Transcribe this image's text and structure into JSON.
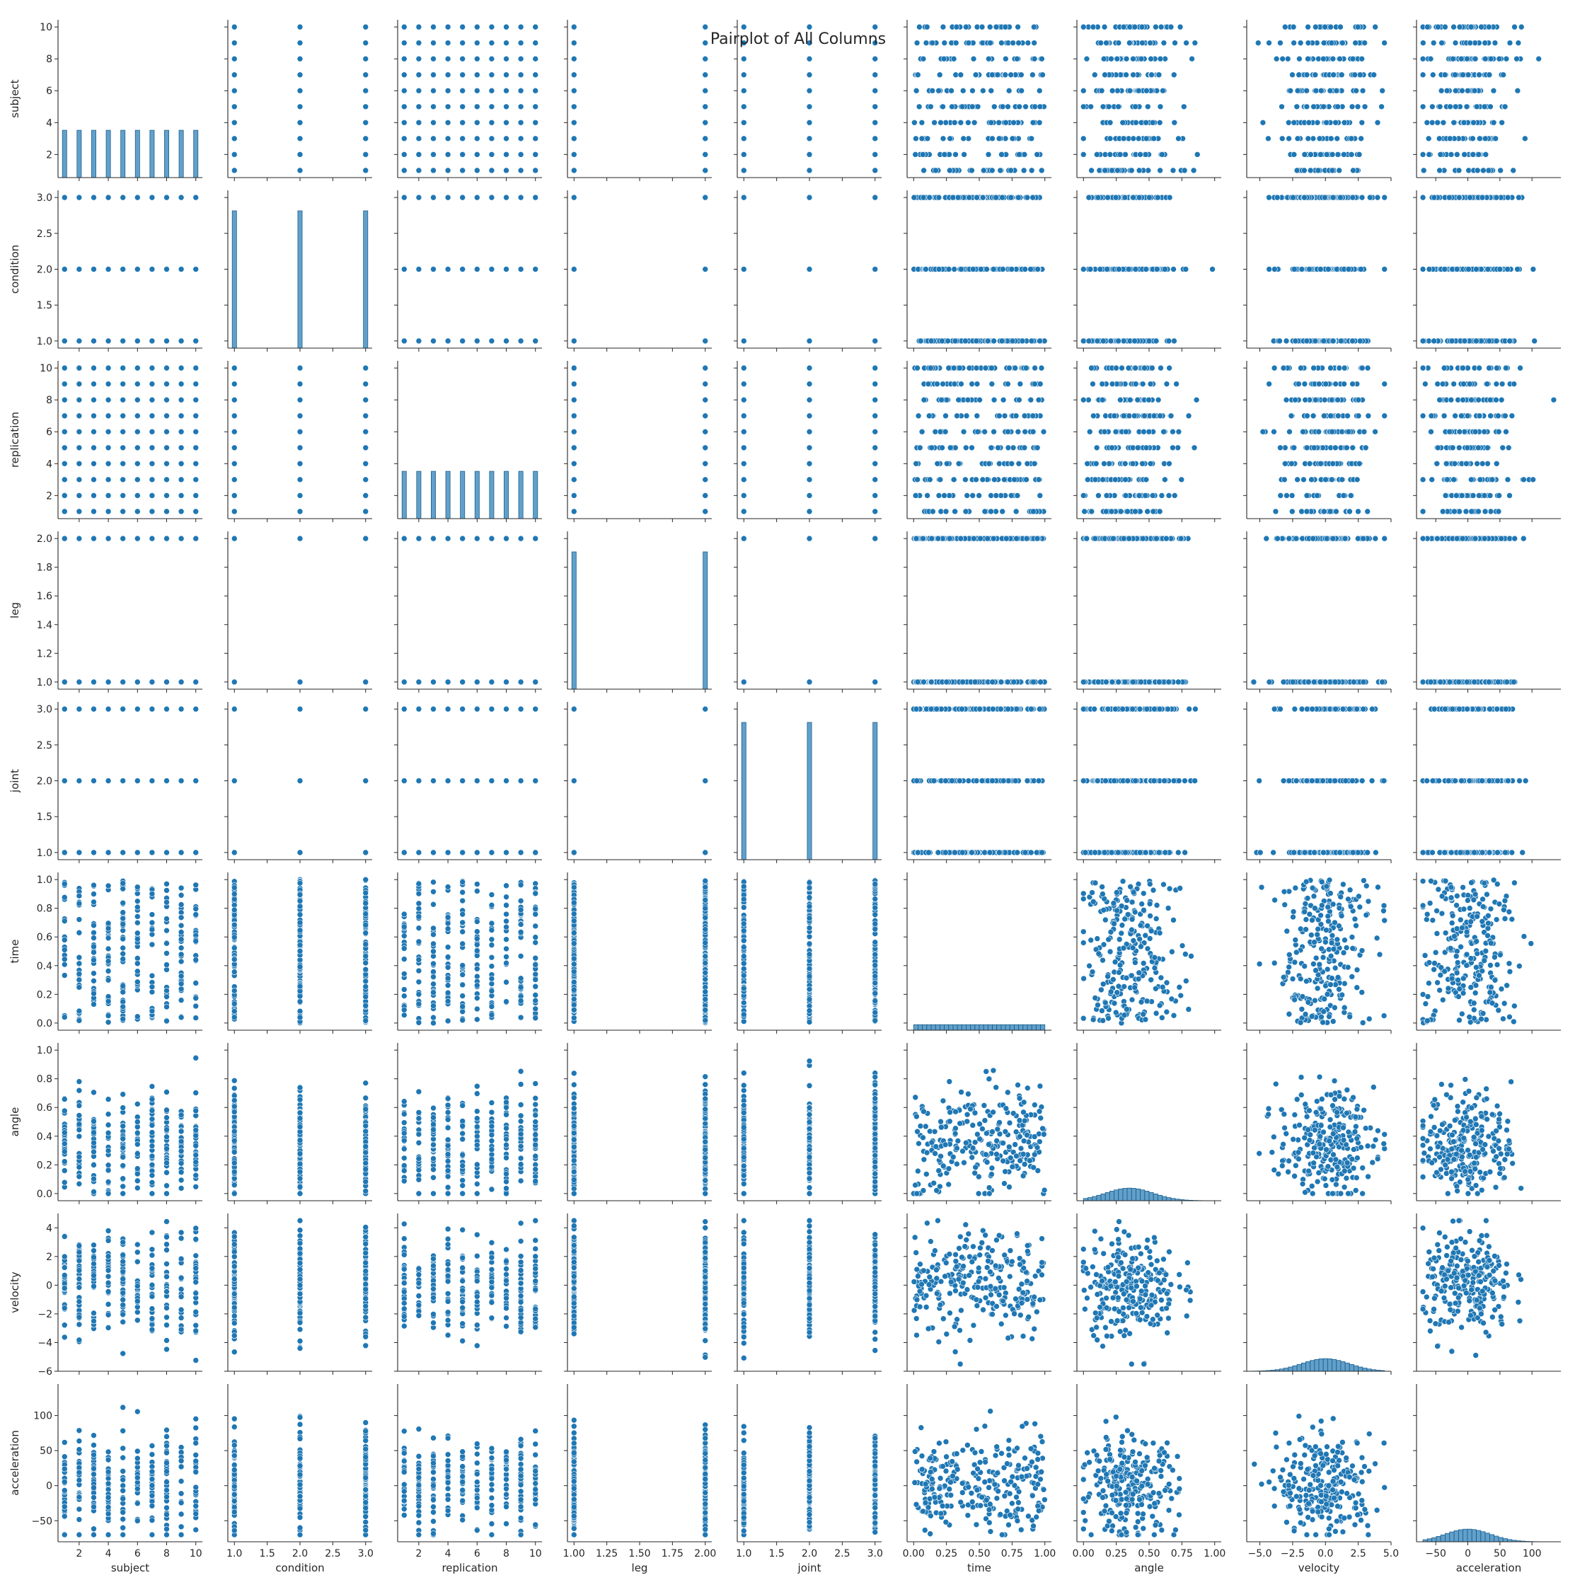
{
  "chart_data": {
    "type": "scatter",
    "kind": "pairplot",
    "title": "Pairplot of All Columns",
    "color": "#1f77b4",
    "variables": [
      {
        "name": "subject",
        "range": [
          0.55,
          10.45
        ],
        "ticks": [
          2,
          4,
          6,
          8,
          10
        ],
        "tick_labels": [
          "2",
          "4",
          "6",
          "8",
          "10"
        ],
        "dist": "levels",
        "levels": [
          1,
          2,
          3,
          4,
          5,
          6,
          7,
          8,
          9,
          10
        ]
      },
      {
        "name": "condition",
        "range": [
          0.9,
          3.1
        ],
        "ticks": [
          1.0,
          1.5,
          2.0,
          2.5,
          3.0
        ],
        "tick_labels": [
          "1.0",
          "1.5",
          "2.0",
          "2.5",
          "3.0"
        ],
        "dist": "levels",
        "levels": [
          1,
          2,
          3
        ]
      },
      {
        "name": "replication",
        "range": [
          0.55,
          10.45
        ],
        "ticks": [
          2,
          4,
          6,
          8,
          10
        ],
        "tick_labels": [
          "2",
          "4",
          "6",
          "8",
          "10"
        ],
        "dist": "levels",
        "levels": [
          1,
          2,
          3,
          4,
          5,
          6,
          7,
          8,
          9,
          10
        ]
      },
      {
        "name": "leg",
        "range": [
          0.95,
          2.05
        ],
        "ticks": [
          1.0,
          1.25,
          1.5,
          1.75,
          2.0
        ],
        "tick_labels": [
          "1.00",
          "1.25",
          "1.50",
          "1.75",
          "2.00"
        ],
        "y_ticks": [
          1.0,
          1.2,
          1.4,
          1.6,
          1.8,
          2.0
        ],
        "y_tick_labels": [
          "1.0",
          "1.2",
          "1.4",
          "1.6",
          "1.8",
          "2.0"
        ],
        "dist": "levels",
        "levels": [
          1,
          2
        ]
      },
      {
        "name": "joint",
        "range": [
          0.9,
          3.1
        ],
        "ticks": [
          1.0,
          1.5,
          2.0,
          2.5,
          3.0
        ],
        "tick_labels": [
          "1.0",
          "1.5",
          "2.0",
          "2.5",
          "3.0"
        ],
        "dist": "levels",
        "levels": [
          1,
          2,
          3
        ]
      },
      {
        "name": "time",
        "range": [
          -0.05,
          1.05
        ],
        "ticks": [
          0.0,
          0.25,
          0.5,
          0.75,
          1.0
        ],
        "tick_labels": [
          "0.00",
          "0.25",
          "0.50",
          "0.75",
          "1.00"
        ],
        "y_ticks": [
          0.0,
          0.2,
          0.4,
          0.6,
          0.8,
          1.0
        ],
        "y_tick_labels": [
          "0.0",
          "0.2",
          "0.4",
          "0.6",
          "0.8",
          "1.0"
        ],
        "dist": "uniform",
        "min": 0.0,
        "max": 1.0
      },
      {
        "name": "angle",
        "range": [
          -0.05,
          1.05
        ],
        "ticks": [
          0.0,
          0.25,
          0.5,
          0.75,
          1.0
        ],
        "tick_labels": [
          "0.00",
          "0.25",
          "0.50",
          "0.75",
          "1.00"
        ],
        "y_ticks": [
          0.0,
          0.2,
          0.4,
          0.6,
          0.8,
          1.0
        ],
        "y_tick_labels": [
          "0.0",
          "0.2",
          "0.4",
          "0.6",
          "0.8",
          "1.0"
        ],
        "dist": "normal",
        "mean": 0.35,
        "sd": 0.18,
        "min": 0.0,
        "max": 1.0
      },
      {
        "name": "velocity",
        "range": [
          -6.0,
          5.0
        ],
        "ticks": [
          -5.0,
          -2.5,
          0.0,
          2.5,
          5.0
        ],
        "tick_labels": [
          "−5.0",
          "−2.5",
          "0.0",
          "2.5",
          "5.0"
        ],
        "y_ticks": [
          -6,
          -4,
          -2,
          0,
          2,
          4
        ],
        "y_tick_labels": [
          "−6",
          "−4",
          "−2",
          "0",
          "2",
          "4"
        ],
        "dist": "normal",
        "mean": 0.0,
        "sd": 1.8,
        "min": -5.5,
        "max": 4.5
      },
      {
        "name": "acceleration",
        "range": [
          -80,
          145
        ],
        "ticks": [
          -50,
          0,
          50,
          100
        ],
        "tick_labels": [
          "−50",
          "0",
          "50",
          "100"
        ],
        "y_ticks": [
          -50,
          0,
          50,
          100
        ],
        "y_tick_labels": [
          "−50",
          "0",
          "50",
          "100"
        ],
        "dist": "normal",
        "mean": 0.0,
        "sd": 35,
        "min": -70,
        "max": 138
      }
    ]
  }
}
